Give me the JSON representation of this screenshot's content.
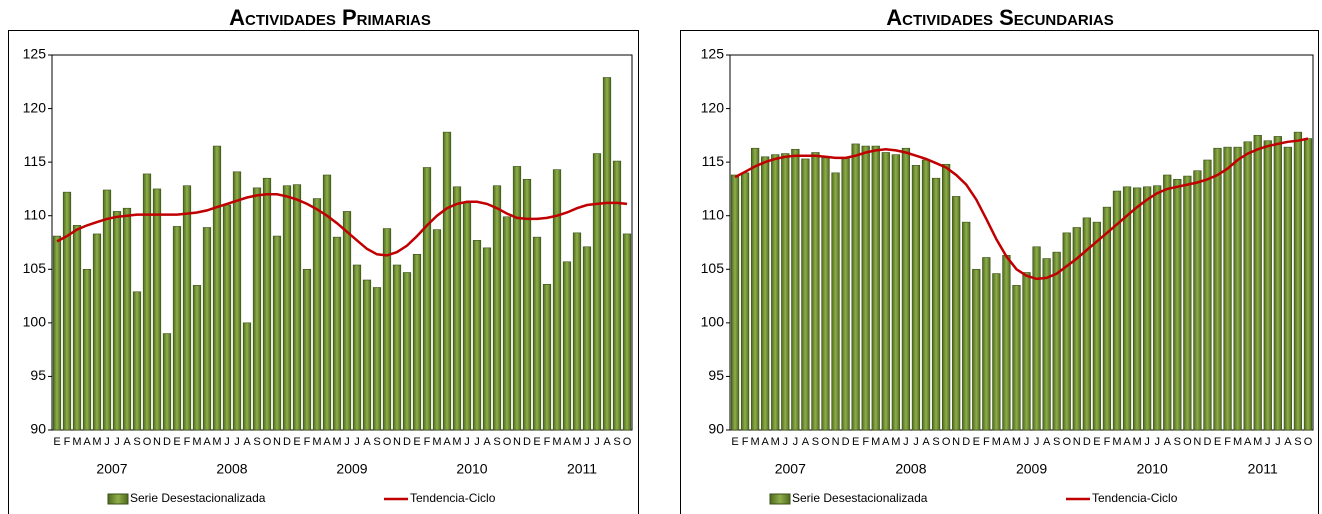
{
  "chart_data": [
    {
      "type": "bar",
      "title": "Actividades Primarias",
      "categories": [
        "E",
        "F",
        "M",
        "A",
        "M",
        "J",
        "J",
        "A",
        "S",
        "O",
        "N",
        "D",
        "E",
        "F",
        "M",
        "A",
        "M",
        "J",
        "J",
        "A",
        "S",
        "O",
        "N",
        "D",
        "E",
        "F",
        "M",
        "A",
        "M",
        "J",
        "J",
        "A",
        "S",
        "O",
        "N",
        "D",
        "E",
        "F",
        "M",
        "A",
        "M",
        "J",
        "J",
        "A",
        "S",
        "O",
        "N",
        "D",
        "E",
        "F",
        "M",
        "A",
        "M",
        "J",
        "J",
        "A",
        "S",
        "O"
      ],
      "year_labels": [
        "2007",
        "2008",
        "2009",
        "2010",
        "2011"
      ],
      "series": [
        {
          "name": "Serie Desestacionalizada",
          "type": "bar",
          "color": "#6f8f2f",
          "values": [
            108.1,
            112.2,
            109.1,
            105.0,
            108.3,
            112.4,
            110.4,
            110.7,
            102.9,
            113.9,
            112.5,
            99.0,
            109.0,
            112.8,
            103.5,
            108.9,
            116.5,
            111.0,
            114.1,
            100.0,
            112.6,
            113.5,
            108.1,
            112.8,
            112.9,
            105.0,
            111.6,
            113.8,
            108.0,
            110.4,
            105.4,
            104.0,
            103.3,
            108.8,
            105.4,
            104.7,
            106.4,
            114.5,
            108.7,
            117.8,
            112.7,
            111.2,
            107.7,
            107.0,
            112.8,
            109.9,
            114.6,
            113.4,
            108.0,
            103.6,
            114.3,
            105.7,
            108.4,
            107.1,
            115.8,
            122.9,
            115.1,
            108.3
          ]
        },
        {
          "name": "Tendencia-Ciclo",
          "type": "line",
          "color": "#c00000",
          "values": [
            107.6,
            108.1,
            108.7,
            109.1,
            109.4,
            109.7,
            109.9,
            110.0,
            110.1,
            110.1,
            110.1,
            110.1,
            110.1,
            110.2,
            110.3,
            110.5,
            110.8,
            111.1,
            111.4,
            111.7,
            111.9,
            112.0,
            112.0,
            111.8,
            111.5,
            111.1,
            110.6,
            110.0,
            109.3,
            108.5,
            107.7,
            106.9,
            106.4,
            106.3,
            106.6,
            107.2,
            108.1,
            109.1,
            110.0,
            110.7,
            111.1,
            111.3,
            111.3,
            111.1,
            110.7,
            110.2,
            109.8,
            109.7,
            109.7,
            109.8,
            110.0,
            110.3,
            110.7,
            111.0,
            111.1,
            111.2,
            111.2,
            111.1
          ]
        }
      ],
      "ylim": [
        90,
        125
      ],
      "yticks": [
        90,
        95,
        100,
        105,
        110,
        115,
        120,
        125
      ]
    },
    {
      "type": "bar",
      "title": "Actividades Secundarias",
      "categories": [
        "E",
        "F",
        "M",
        "A",
        "M",
        "J",
        "J",
        "A",
        "S",
        "O",
        "N",
        "D",
        "E",
        "F",
        "M",
        "A",
        "M",
        "J",
        "J",
        "A",
        "S",
        "O",
        "N",
        "D",
        "E",
        "F",
        "M",
        "A",
        "M",
        "J",
        "J",
        "A",
        "S",
        "O",
        "N",
        "D",
        "E",
        "F",
        "M",
        "A",
        "M",
        "J",
        "J",
        "A",
        "S",
        "O",
        "N",
        "D",
        "E",
        "F",
        "M",
        "A",
        "M",
        "J",
        "J",
        "A",
        "S",
        "O"
      ],
      "year_labels": [
        "2007",
        "2008",
        "2009",
        "2010",
        "2011"
      ],
      "series": [
        {
          "name": "Serie Desestacionalizada",
          "type": "bar",
          "color": "#6f8f2f",
          "values": [
            113.8,
            114.0,
            116.3,
            115.5,
            115.7,
            115.8,
            116.2,
            115.3,
            115.9,
            115.4,
            114.0,
            115.4,
            116.7,
            116.5,
            116.5,
            115.9,
            115.7,
            116.3,
            114.7,
            115.2,
            113.5,
            114.8,
            111.8,
            109.4,
            105.0,
            106.1,
            104.6,
            106.3,
            103.5,
            104.7,
            107.1,
            106.0,
            106.6,
            108.4,
            108.9,
            109.8,
            109.4,
            110.8,
            112.3,
            112.7,
            112.6,
            112.7,
            112.8,
            113.8,
            113.4,
            113.7,
            114.2,
            115.2,
            116.3,
            116.4,
            116.4,
            116.9,
            117.5,
            117.0,
            117.4,
            116.4,
            117.8,
            117.2
          ]
        },
        {
          "name": "Tendencia-Ciclo",
          "type": "line",
          "color": "#c00000",
          "values": [
            113.6,
            114.1,
            114.6,
            115.0,
            115.3,
            115.5,
            115.6,
            115.6,
            115.6,
            115.5,
            115.4,
            115.4,
            115.6,
            115.9,
            116.1,
            116.2,
            116.1,
            115.9,
            115.6,
            115.3,
            114.9,
            114.5,
            113.8,
            112.9,
            111.5,
            109.7,
            107.8,
            106.2,
            105.0,
            104.4,
            104.1,
            104.2,
            104.6,
            105.3,
            106.0,
            106.8,
            107.6,
            108.4,
            109.2,
            110.0,
            110.8,
            111.5,
            112.1,
            112.5,
            112.7,
            112.9,
            113.1,
            113.4,
            113.8,
            114.4,
            115.2,
            115.8,
            116.2,
            116.5,
            116.7,
            116.9,
            117.0,
            117.2
          ]
        }
      ],
      "ylim": [
        90,
        125
      ],
      "yticks": [
        90,
        95,
        100,
        105,
        110,
        115,
        120,
        125
      ]
    }
  ]
}
